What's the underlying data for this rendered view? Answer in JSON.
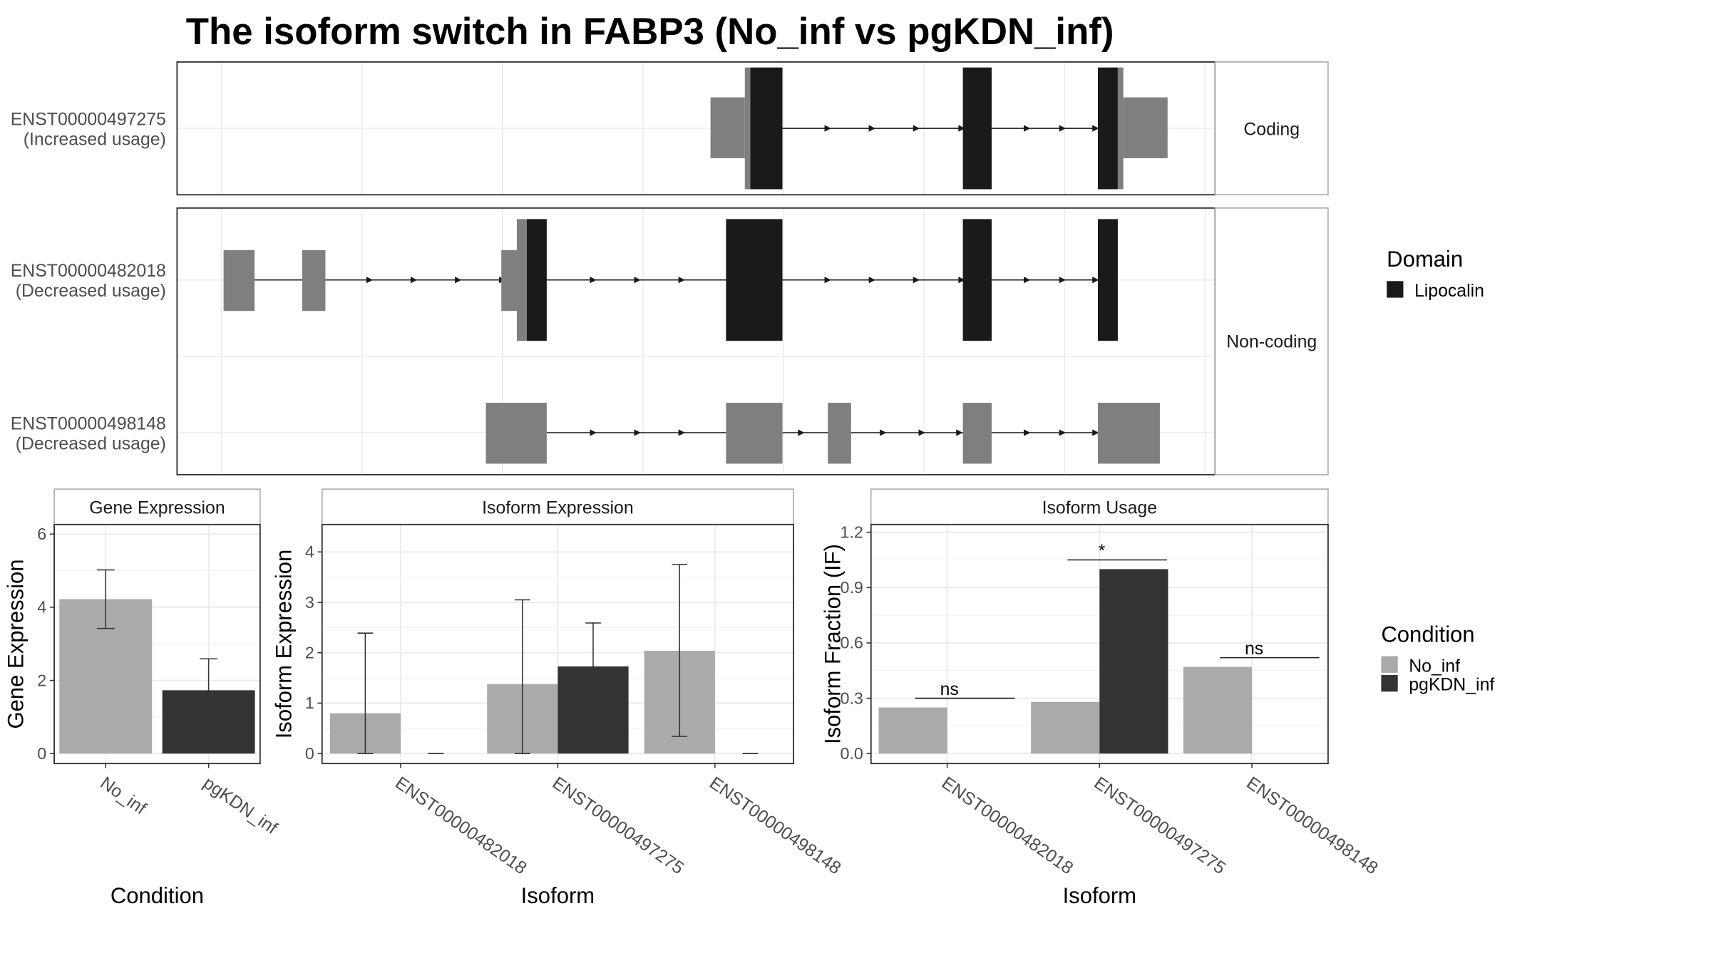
{
  "title": "The isoform switch in FABP3 (No_inf vs pgKDN_inf)",
  "colors": {
    "coding_region": "#1a1a1a",
    "noncoding_region": "#7f7f7f",
    "no_inf": "#aaaaaa",
    "pgkdn_inf": "#333333",
    "panel_border": "#333333",
    "strip_border": "#a6a6a6",
    "grid": "#ebebeb"
  },
  "transcripts": {
    "facets": [
      "Coding",
      "Non-coding"
    ],
    "legend_title": "Domain",
    "legend_items": [
      {
        "label": "Lipocalin",
        "color": "#1a1a1a"
      }
    ],
    "rows": [
      {
        "id": "ENST00000497275",
        "status": "(Increased usage)",
        "facet": "Coding"
      },
      {
        "id": "ENST00000482018",
        "status": "(Decreased usage)",
        "facet": "Non-coding"
      },
      {
        "id": "ENST00000498148",
        "status": "(Decreased usage)",
        "facet": "Non-coding"
      }
    ]
  },
  "chart_data": [
    {
      "type": "bar",
      "title": "Gene Expression",
      "xlabel": "Condition",
      "ylabel": "Gene Expression",
      "categories": [
        "No_inf",
        "pgKDN_inf"
      ],
      "values": [
        4.22,
        1.73
      ],
      "error_low": [
        3.42,
        0.87
      ],
      "error_high": [
        5.02,
        2.59
      ],
      "ylim": [
        0,
        6.2
      ],
      "yticks": [
        "0",
        "2",
        "4",
        "6"
      ]
    },
    {
      "type": "bar",
      "title": "Isoform Expression",
      "xlabel": "Isoform",
      "ylabel": "Isoform Expression",
      "categories": [
        "ENST00000482018",
        "ENST00000497275",
        "ENST00000498148"
      ],
      "series": [
        {
          "name": "No_inf",
          "values": [
            0.8,
            1.38,
            2.04
          ],
          "error_low": [
            0.0,
            0.0,
            0.34
          ],
          "error_high": [
            2.39,
            3.05,
            3.75
          ]
        },
        {
          "name": "pgKDN_inf",
          "values": [
            0.0,
            1.73,
            0.0
          ],
          "error_low": [
            0.0,
            0.87,
            0.0
          ],
          "error_high": [
            0.0,
            2.59,
            0.0
          ]
        }
      ],
      "ylim": [
        0,
        4.5
      ],
      "yticks": [
        "0",
        "1",
        "2",
        "3",
        "4"
      ]
    },
    {
      "type": "bar",
      "title": "Isoform Usage",
      "xlabel": "Isoform",
      "ylabel": "Isoform Fraction (IF)",
      "categories": [
        "ENST00000482018",
        "ENST00000497275",
        "ENST00000498148"
      ],
      "series": [
        {
          "name": "No_inf",
          "values": [
            0.25,
            0.28,
            0.47
          ]
        },
        {
          "name": "pgKDN_inf",
          "values": [
            0.0,
            1.0,
            0.0
          ]
        }
      ],
      "significance": [
        "ns",
        "*",
        "ns"
      ],
      "ylim": [
        0,
        1.23
      ],
      "yticks": [
        "0.0",
        "0.3",
        "0.6",
        "0.9",
        "1.2"
      ]
    }
  ],
  "condition_legend": {
    "title": "Condition",
    "items": [
      {
        "label": "No_inf",
        "color": "#aaaaaa"
      },
      {
        "label": "pgKDN_inf",
        "color": "#333333"
      }
    ]
  }
}
